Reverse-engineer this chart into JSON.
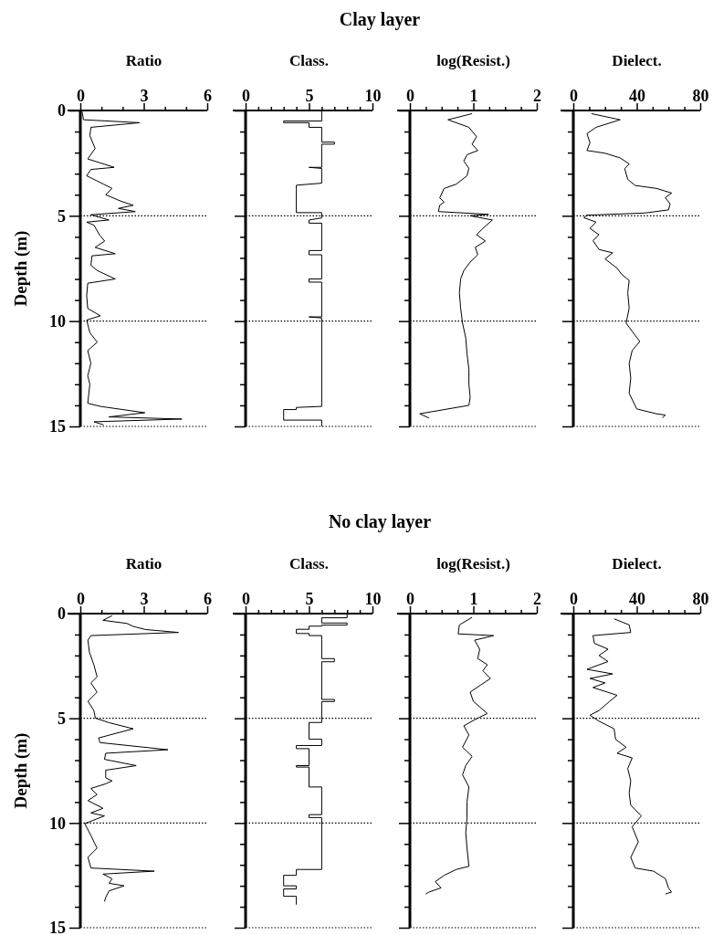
{
  "chart_data": [
    {
      "type": "line",
      "xlabel": "Ratio",
      "ylabel": "Depth (m)",
      "xlim": [
        0,
        6
      ],
      "xticks": [
        0,
        {
          "value": 1,
          "label": null
        },
        {
          "value": 2,
          "label": null
        },
        3,
        {
          "value": 4,
          "label": null
        },
        {
          "value": 5,
          "label": null
        },
        6
      ],
      "ylim": [
        15,
        0
      ],
      "yticks": [
        0,
        {
          "value": 1,
          "label": null
        },
        {
          "value": 2,
          "label": null
        },
        {
          "value": 3,
          "label": null
        },
        {
          "value": 4,
          "label": null
        },
        5,
        {
          "value": 6,
          "label": null
        },
        {
          "value": 7,
          "label": null
        },
        {
          "value": 8,
          "label": null
        },
        {
          "value": 9,
          "label": null
        },
        10,
        {
          "value": 11,
          "label": null
        },
        {
          "value": 12,
          "label": null
        },
        {
          "value": 13,
          "label": null
        },
        {
          "value": 14,
          "label": null
        },
        15
      ],
      "ref_lines": [
        {
          "axis": "y",
          "value": 5,
          "color": "#000000",
          "line_style": "dotted"
        },
        {
          "axis": "y",
          "value": 10,
          "color": "#000000",
          "line_style": "dotted"
        }
      ],
      "series": [
        {
          "color": "#000000",
          "x": [
            0.07,
            0.15,
            2.8,
            0.5,
            0.45,
            0.7,
            0.35,
            1.6,
            0.5,
            0.3,
            1.1,
            1.5,
            1.2,
            1.9,
            2.5,
            1.8,
            2.6,
            0.5,
            1.35,
            0.3,
            0.65,
            0.9,
            1.15,
            0.7,
            1.65,
            0.55,
            0.5,
            0.8,
            1.65,
            0.35,
            0.3,
            0.35,
            0.95,
            0.3,
            0.45,
            0.8,
            0.35,
            0.5,
            0.35,
            0.45,
            0.35,
            0.95,
            3.05,
            1.35,
            4.8,
            0.65,
            1.1
          ],
          "values": [
            0,
            0.44,
            0.58,
            0.8,
            1.2,
            1.8,
            2.3,
            2.7,
            2.8,
            3.1,
            3.5,
            3.7,
            4.0,
            4.3,
            4.5,
            4.65,
            4.8,
            4.95,
            5.2,
            5.3,
            5.45,
            5.9,
            6.2,
            6.5,
            6.8,
            6.9,
            7.35,
            7.6,
            8.0,
            8.2,
            8.8,
            9.4,
            9.75,
            9.95,
            10.55,
            11.0,
            11.4,
            12.0,
            12.6,
            13.0,
            13.9,
            14.05,
            14.35,
            14.55,
            14.65,
            14.78,
            14.93
          ]
        }
      ]
    },
    {
      "type": "line",
      "title": "Clay layer",
      "xlabel": "Class.",
      "xlim": [
        0,
        10
      ],
      "xticks": [
        0,
        {
          "value": 1,
          "label": null
        },
        {
          "value": 2,
          "label": null
        },
        {
          "value": 3,
          "label": null
        },
        {
          "value": 4,
          "label": null
        },
        5,
        {
          "value": 6,
          "label": null
        },
        {
          "value": 7,
          "label": null
        },
        {
          "value": 8,
          "label": null
        },
        {
          "value": 9,
          "label": null
        },
        10
      ],
      "ylim": [
        15,
        0
      ],
      "yticks": [
        0,
        {
          "value": 1,
          "label": null
        },
        {
          "value": 2,
          "label": null
        },
        {
          "value": 3,
          "label": null
        },
        {
          "value": 4,
          "label": null
        },
        5,
        {
          "value": 6,
          "label": null
        },
        {
          "value": 7,
          "label": null
        },
        {
          "value": 8,
          "label": null
        },
        {
          "value": 9,
          "label": null
        },
        10,
        {
          "value": 11,
          "label": null
        },
        {
          "value": 12,
          "label": null
        },
        {
          "value": 13,
          "label": null
        },
        {
          "value": 14,
          "label": null
        },
        15
      ],
      "tick_labels": "x",
      "ref_lines": [
        {
          "axis": "y",
          "value": 5,
          "color": "#000000",
          "line_style": "dotted"
        },
        {
          "axis": "y",
          "value": 10,
          "color": "#000000",
          "line_style": "dotted"
        }
      ],
      "series": [
        {
          "color": "#000000",
          "x": [
            6,
            6,
            3,
            3,
            5,
            5,
            6,
            6,
            7,
            7,
            6,
            6,
            5,
            6,
            6,
            4,
            4,
            6,
            6,
            5,
            5,
            6,
            6,
            5,
            5,
            6,
            6,
            5,
            5,
            6,
            6,
            5,
            6,
            6,
            4,
            4,
            3,
            3,
            6,
            6
          ],
          "values": [
            0,
            0.5,
            0.5,
            0.58,
            0.58,
            0.8,
            0.8,
            1.5,
            1.5,
            1.6,
            1.6,
            2.7,
            2.7,
            2.75,
            3.45,
            3.55,
            4.85,
            4.85,
            5.1,
            5.2,
            5.35,
            5.35,
            6.65,
            6.65,
            6.85,
            6.85,
            8.0,
            8.0,
            8.15,
            8.15,
            9.8,
            9.8,
            9.85,
            14.05,
            14.1,
            14.2,
            14.2,
            14.7,
            14.7,
            15
          ]
        }
      ]
    },
    {
      "type": "line",
      "xlabel": "log(Resist.)",
      "xlim": [
        0,
        2
      ],
      "xticks": [
        0,
        {
          "value": 0.25,
          "label": null
        },
        {
          "value": 0.5,
          "label": null
        },
        {
          "value": 0.75,
          "label": null
        },
        1,
        {
          "value": 1.25,
          "label": null
        },
        {
          "value": 1.5,
          "label": null
        },
        {
          "value": 1.75,
          "label": null
        },
        2
      ],
      "ylim": [
        15,
        0
      ],
      "yticks": [
        0,
        {
          "value": 1,
          "label": null
        },
        {
          "value": 2,
          "label": null
        },
        {
          "value": 3,
          "label": null
        },
        {
          "value": 4,
          "label": null
        },
        5,
        {
          "value": 6,
          "label": null
        },
        {
          "value": 7,
          "label": null
        },
        {
          "value": 8,
          "label": null
        },
        {
          "value": 9,
          "label": null
        },
        10,
        {
          "value": 11,
          "label": null
        },
        {
          "value": 12,
          "label": null
        },
        {
          "value": 13,
          "label": null
        },
        {
          "value": 14,
          "label": null
        },
        15
      ],
      "tick_labels": "x",
      "ref_lines": [
        {
          "axis": "y",
          "value": 5,
          "color": "#000000",
          "line_style": "dotted"
        },
        {
          "axis": "y",
          "value": 10,
          "color": "#000000",
          "line_style": "dotted"
        }
      ],
      "series": [
        {
          "color": "#000000",
          "x": [
            0.98,
            0.6,
            0.93,
            1.05,
            0.98,
            1.07,
            0.9,
            0.85,
            0.93,
            0.9,
            0.73,
            0.54,
            0.47,
            0.54,
            0.47,
            0.45,
            1.24,
            0.95,
            1.3,
            1.15,
            1.05,
            1.19,
            1.03,
            1.07,
            0.95,
            0.85,
            0.8,
            0.78,
            0.8,
            0.83,
            0.88,
            0.9,
            0.93,
            0.93,
            0.95,
            0.93,
            0.155,
            0.3
          ],
          "values": [
            0.15,
            0.44,
            0.8,
            1.24,
            1.6,
            1.9,
            2.1,
            2.4,
            2.75,
            3.1,
            3.5,
            3.7,
            4.15,
            4.35,
            4.5,
            4.8,
            4.93,
            5.0,
            5.2,
            5.6,
            5.9,
            6.2,
            6.5,
            6.85,
            7.2,
            7.6,
            8.0,
            8.65,
            9.4,
            10.1,
            10.8,
            11.55,
            12.3,
            13.0,
            13.6,
            14.0,
            14.4,
            14.6
          ]
        }
      ]
    },
    {
      "type": "line",
      "xlabel": "Dielect.",
      "xlim": [
        0,
        80
      ],
      "xticks": [
        0,
        {
          "value": 10,
          "label": null
        },
        {
          "value": 20,
          "label": null
        },
        {
          "value": 30,
          "label": null
        },
        40,
        {
          "value": 50,
          "label": null
        },
        {
          "value": 60,
          "label": null
        },
        {
          "value": 70,
          "label": null
        },
        80
      ],
      "ylim": [
        15,
        0
      ],
      "yticks": [
        0,
        {
          "value": 1,
          "label": null
        },
        {
          "value": 2,
          "label": null
        },
        {
          "value": 3,
          "label": null
        },
        {
          "value": 4,
          "label": null
        },
        5,
        {
          "value": 6,
          "label": null
        },
        {
          "value": 7,
          "label": null
        },
        {
          "value": 8,
          "label": null
        },
        {
          "value": 9,
          "label": null
        },
        10,
        {
          "value": 11,
          "label": null
        },
        {
          "value": 12,
          "label": null
        },
        {
          "value": 13,
          "label": null
        },
        {
          "value": 14,
          "label": null
        },
        15
      ],
      "tick_labels": "x",
      "ref_lines": [
        {
          "axis": "y",
          "value": 5,
          "color": "#000000",
          "line_style": "dotted"
        },
        {
          "axis": "y",
          "value": 10,
          "color": "#000000",
          "line_style": "dotted"
        }
      ],
      "series": [
        {
          "color": "#000000",
          "x": [
            11.4,
            29.5,
            14.3,
            8.6,
            10.5,
            8.6,
            20,
            29.5,
            35.2,
            32.4,
            34.3,
            39,
            52.4,
            62,
            58,
            61,
            60,
            44.8,
            8.6,
            6.7,
            14.3,
            10.5,
            16.2,
            12.4,
            16.2,
            24.8,
            20,
            27.6,
            30.5,
            35.2,
            34.3,
            35.2,
            33.3,
            41.9,
            37.1,
            35.2,
            36.2,
            35.2,
            40,
            52.4,
            58,
            56.2
          ],
          "values": [
            0.15,
            0.44,
            0.8,
            1.1,
            1.53,
            1.9,
            2.03,
            2.25,
            2.54,
            2.76,
            3.27,
            3.56,
            3.7,
            3.92,
            4.14,
            4.43,
            4.72,
            4.87,
            4.97,
            5.09,
            5.3,
            5.6,
            5.9,
            6.18,
            6.6,
            6.76,
            7.05,
            7.49,
            7.78,
            8.07,
            8.65,
            9.38,
            10.1,
            10.97,
            11.4,
            12.0,
            12.7,
            13.43,
            14.17,
            14.4,
            14.46,
            14.6
          ]
        }
      ]
    },
    {
      "type": "line",
      "xlabel": "Ratio",
      "ylabel": "Depth (m)",
      "xlim": [
        0,
        6
      ],
      "xticks": [
        0,
        {
          "value": 1,
          "label": null
        },
        {
          "value": 2,
          "label": null
        },
        3,
        {
          "value": 4,
          "label": null
        },
        {
          "value": 5,
          "label": null
        },
        6
      ],
      "ylim": [
        15,
        0
      ],
      "yticks": [
        0,
        {
          "value": 1,
          "label": null
        },
        {
          "value": 2,
          "label": null
        },
        {
          "value": 3,
          "label": null
        },
        {
          "value": 4,
          "label": null
        },
        5,
        {
          "value": 6,
          "label": null
        },
        {
          "value": 7,
          "label": null
        },
        {
          "value": 8,
          "label": null
        },
        {
          "value": 9,
          "label": null
        },
        10,
        {
          "value": 11,
          "label": null
        },
        {
          "value": 12,
          "label": null
        },
        {
          "value": 13,
          "label": null
        },
        {
          "value": 14,
          "label": null
        },
        15
      ],
      "ref_lines": [
        {
          "axis": "y",
          "value": 5,
          "color": "#000000",
          "line_style": "dotted"
        },
        {
          "axis": "y",
          "value": 10,
          "color": "#000000",
          "line_style": "dotted"
        }
      ],
      "series": [
        {
          "color": "#000000",
          "x": [
            1.5,
            1.07,
            2.2,
            2.5,
            3.07,
            4.64,
            0.5,
            0.36,
            0.43,
            0.64,
            0.79,
            0.5,
            0.79,
            0.36,
            0.64,
            0.71,
            1.36,
            2.5,
            0.86,
            0.93,
            4.14,
            1.2,
            1.14,
            2.64,
            1.2,
            1.2,
            1.5,
            1.2,
            0.5,
            0.79,
            0.36,
            1.07,
            0.5,
            1.14,
            0.21,
            0.5,
            0.79,
            0.36,
            0.5,
            3.5,
            1.07,
            1.5,
            1.36,
            2.07,
            1.36,
            1.21,
            1.14
          ],
          "values": [
            0.1,
            0.32,
            0.47,
            0.61,
            0.76,
            0.9,
            1.05,
            1.27,
            1.85,
            2.44,
            3.02,
            3.31,
            3.75,
            4.19,
            4.63,
            4.99,
            5.21,
            5.5,
            5.94,
            6.16,
            6.5,
            6.67,
            6.96,
            7.26,
            7.48,
            7.84,
            7.99,
            8.13,
            8.35,
            8.64,
            8.93,
            9.3,
            9.52,
            9.66,
            10.03,
            10.6,
            11.2,
            11.64,
            12.15,
            12.3,
            12.44,
            12.66,
            12.88,
            13.0,
            13.24,
            13.53,
            13.75
          ]
        }
      ]
    },
    {
      "type": "line",
      "title": "No clay layer",
      "xlabel": "Class.",
      "xlim": [
        0,
        10
      ],
      "xticks": [
        0,
        {
          "value": 1,
          "label": null
        },
        {
          "value": 2,
          "label": null
        },
        {
          "value": 3,
          "label": null
        },
        {
          "value": 4,
          "label": null
        },
        5,
        {
          "value": 6,
          "label": null
        },
        {
          "value": 7,
          "label": null
        },
        {
          "value": 8,
          "label": null
        },
        {
          "value": 9,
          "label": null
        },
        10
      ],
      "ylim": [
        15,
        0
      ],
      "yticks": [
        0,
        {
          "value": 1,
          "label": null
        },
        {
          "value": 2,
          "label": null
        },
        {
          "value": 3,
          "label": null
        },
        {
          "value": 4,
          "label": null
        },
        5,
        {
          "value": 6,
          "label": null
        },
        {
          "value": 7,
          "label": null
        },
        {
          "value": 8,
          "label": null
        },
        {
          "value": 9,
          "label": null
        },
        10,
        {
          "value": 11,
          "label": null
        },
        {
          "value": 12,
          "label": null
        },
        {
          "value": 13,
          "label": null
        },
        {
          "value": 14,
          "label": null
        },
        15
      ],
      "tick_labels": "x",
      "ref_lines": [
        {
          "axis": "y",
          "value": 5,
          "color": "#000000",
          "line_style": "dotted"
        },
        {
          "axis": "y",
          "value": 10,
          "color": "#000000",
          "line_style": "dotted"
        }
      ],
      "series": [
        {
          "color": "#000000",
          "x": [
            8,
            8,
            6,
            6,
            8,
            8,
            6,
            6,
            5,
            5,
            4,
            4,
            5,
            5,
            6,
            6,
            7,
            7,
            6,
            6,
            7,
            7,
            6,
            6,
            5,
            5,
            6,
            6,
            4,
            4,
            5,
            5,
            4,
            4,
            5,
            5,
            6,
            6,
            5,
            5,
            6,
            6,
            4,
            4,
            3,
            3,
            4,
            4,
            3,
            3,
            4,
            4
          ],
          "values": [
            0,
            0.2,
            0.2,
            0.45,
            0.45,
            0.55,
            0.55,
            0.6,
            0.6,
            0.75,
            0.75,
            0.95,
            0.95,
            1.05,
            1.05,
            2.15,
            2.15,
            2.3,
            2.3,
            4.1,
            4.1,
            4.2,
            4.2,
            5.2,
            5.2,
            6.0,
            6.0,
            6.3,
            6.3,
            6.45,
            6.45,
            7.26,
            7.26,
            7.33,
            7.33,
            8.28,
            8.28,
            9.6,
            9.6,
            9.74,
            9.74,
            12.22,
            12.22,
            12.5,
            12.5,
            13.0,
            13.0,
            13.15,
            13.15,
            13.5,
            13.5,
            13.9
          ]
        }
      ]
    },
    {
      "type": "line",
      "xlabel": "log(Resist.)",
      "xlim": [
        0,
        2
      ],
      "xticks": [
        0,
        {
          "value": 0.25,
          "label": null
        },
        {
          "value": 0.5,
          "label": null
        },
        {
          "value": 0.75,
          "label": null
        },
        1,
        {
          "value": 1.25,
          "label": null
        },
        {
          "value": 1.5,
          "label": null
        },
        {
          "value": 1.75,
          "label": null
        },
        2
      ],
      "ylim": [
        15,
        0
      ],
      "yticks": [
        0,
        {
          "value": 1,
          "label": null
        },
        {
          "value": 2,
          "label": null
        },
        {
          "value": 3,
          "label": null
        },
        {
          "value": 4,
          "label": null
        },
        5,
        {
          "value": 6,
          "label": null
        },
        {
          "value": 7,
          "label": null
        },
        {
          "value": 8,
          "label": null
        },
        {
          "value": 9,
          "label": null
        },
        10,
        {
          "value": 11,
          "label": null
        },
        {
          "value": 12,
          "label": null
        },
        {
          "value": 13,
          "label": null
        },
        {
          "value": 14,
          "label": null
        },
        15
      ],
      "tick_labels": "x",
      "ref_lines": [
        {
          "axis": "y",
          "value": 5,
          "color": "#000000",
          "line_style": "dotted"
        },
        {
          "axis": "y",
          "value": 10,
          "color": "#000000",
          "line_style": "dotted"
        }
      ],
      "series": [
        {
          "color": "#000000",
          "x": [
            0.98,
            0.78,
            0.76,
            1.32,
            1.02,
            1.1,
            1.07,
            1.22,
            1.15,
            1.27,
            1.12,
            0.95,
            1.0,
            1.22,
            1.02,
            0.85,
            0.93,
            0.83,
            0.98,
            0.88,
            0.83,
            0.93,
            0.9,
            0.9,
            0.88,
            0.9,
            0.93,
            0.73,
            0.54,
            0.4,
            0.49,
            0.3,
            0.25
          ],
          "values": [
            0.18,
            0.54,
            0.97,
            1.05,
            1.27,
            1.7,
            2.15,
            2.44,
            2.73,
            3.1,
            3.4,
            3.75,
            4.19,
            4.77,
            5.07,
            5.36,
            5.8,
            6.38,
            6.82,
            7.26,
            7.7,
            8.28,
            9.0,
            9.74,
            10.47,
            11.2,
            12.07,
            12.22,
            12.5,
            12.8,
            13.1,
            13.3,
            13.39
          ]
        }
      ]
    },
    {
      "type": "line",
      "xlabel": "Dielect.",
      "xlim": [
        0,
        80
      ],
      "xticks": [
        0,
        {
          "value": 10,
          "label": null
        },
        {
          "value": 20,
          "label": null
        },
        {
          "value": 30,
          "label": null
        },
        40,
        {
          "value": 50,
          "label": null
        },
        {
          "value": 60,
          "label": null
        },
        {
          "value": 70,
          "label": null
        },
        80
      ],
      "ylim": [
        15,
        0
      ],
      "yticks": [
        0,
        {
          "value": 1,
          "label": null
        },
        {
          "value": 2,
          "label": null
        },
        {
          "value": 3,
          "label": null
        },
        {
          "value": 4,
          "label": null
        },
        5,
        {
          "value": 6,
          "label": null
        },
        {
          "value": 7,
          "label": null
        },
        {
          "value": 8,
          "label": null
        },
        {
          "value": 9,
          "label": null
        },
        10,
        {
          "value": 11,
          "label": null
        },
        {
          "value": 12,
          "label": null
        },
        {
          "value": 13,
          "label": null
        },
        {
          "value": 14,
          "label": null
        },
        15
      ],
      "tick_labels": "x",
      "ref_lines": [
        {
          "axis": "y",
          "value": 5,
          "color": "#000000",
          "line_style": "dotted"
        },
        {
          "axis": "y",
          "value": 10,
          "color": "#000000",
          "line_style": "dotted"
        }
      ],
      "series": [
        {
          "color": "#000000",
          "x": [
            25.7,
            35.2,
            36.2,
            12.4,
            13.3,
            21.9,
            16.2,
            21.9,
            8.6,
            24.8,
            10.5,
            20,
            12.4,
            27.6,
            22.9,
            16.2,
            10.5,
            16.2,
            25.7,
            26.7,
            33.3,
            27.6,
            37.1,
            34.3,
            36.2,
            35.2,
            36.2,
            42.9,
            37.1,
            41,
            36.2,
            39,
            50.5,
            58.1,
            60,
            61.9,
            58.1
          ],
          "values": [
            0.25,
            0.54,
            0.9,
            1.05,
            1.42,
            1.7,
            2.0,
            2.29,
            2.66,
            2.88,
            3.1,
            3.31,
            3.53,
            3.9,
            4.19,
            4.63,
            4.85,
            5.14,
            5.5,
            6.01,
            6.38,
            6.67,
            6.89,
            7.4,
            7.99,
            8.57,
            9.15,
            9.66,
            10.18,
            10.9,
            11.64,
            12.15,
            12.3,
            12.66,
            13.1,
            13.3,
            13.39
          ]
        }
      ]
    }
  ]
}
